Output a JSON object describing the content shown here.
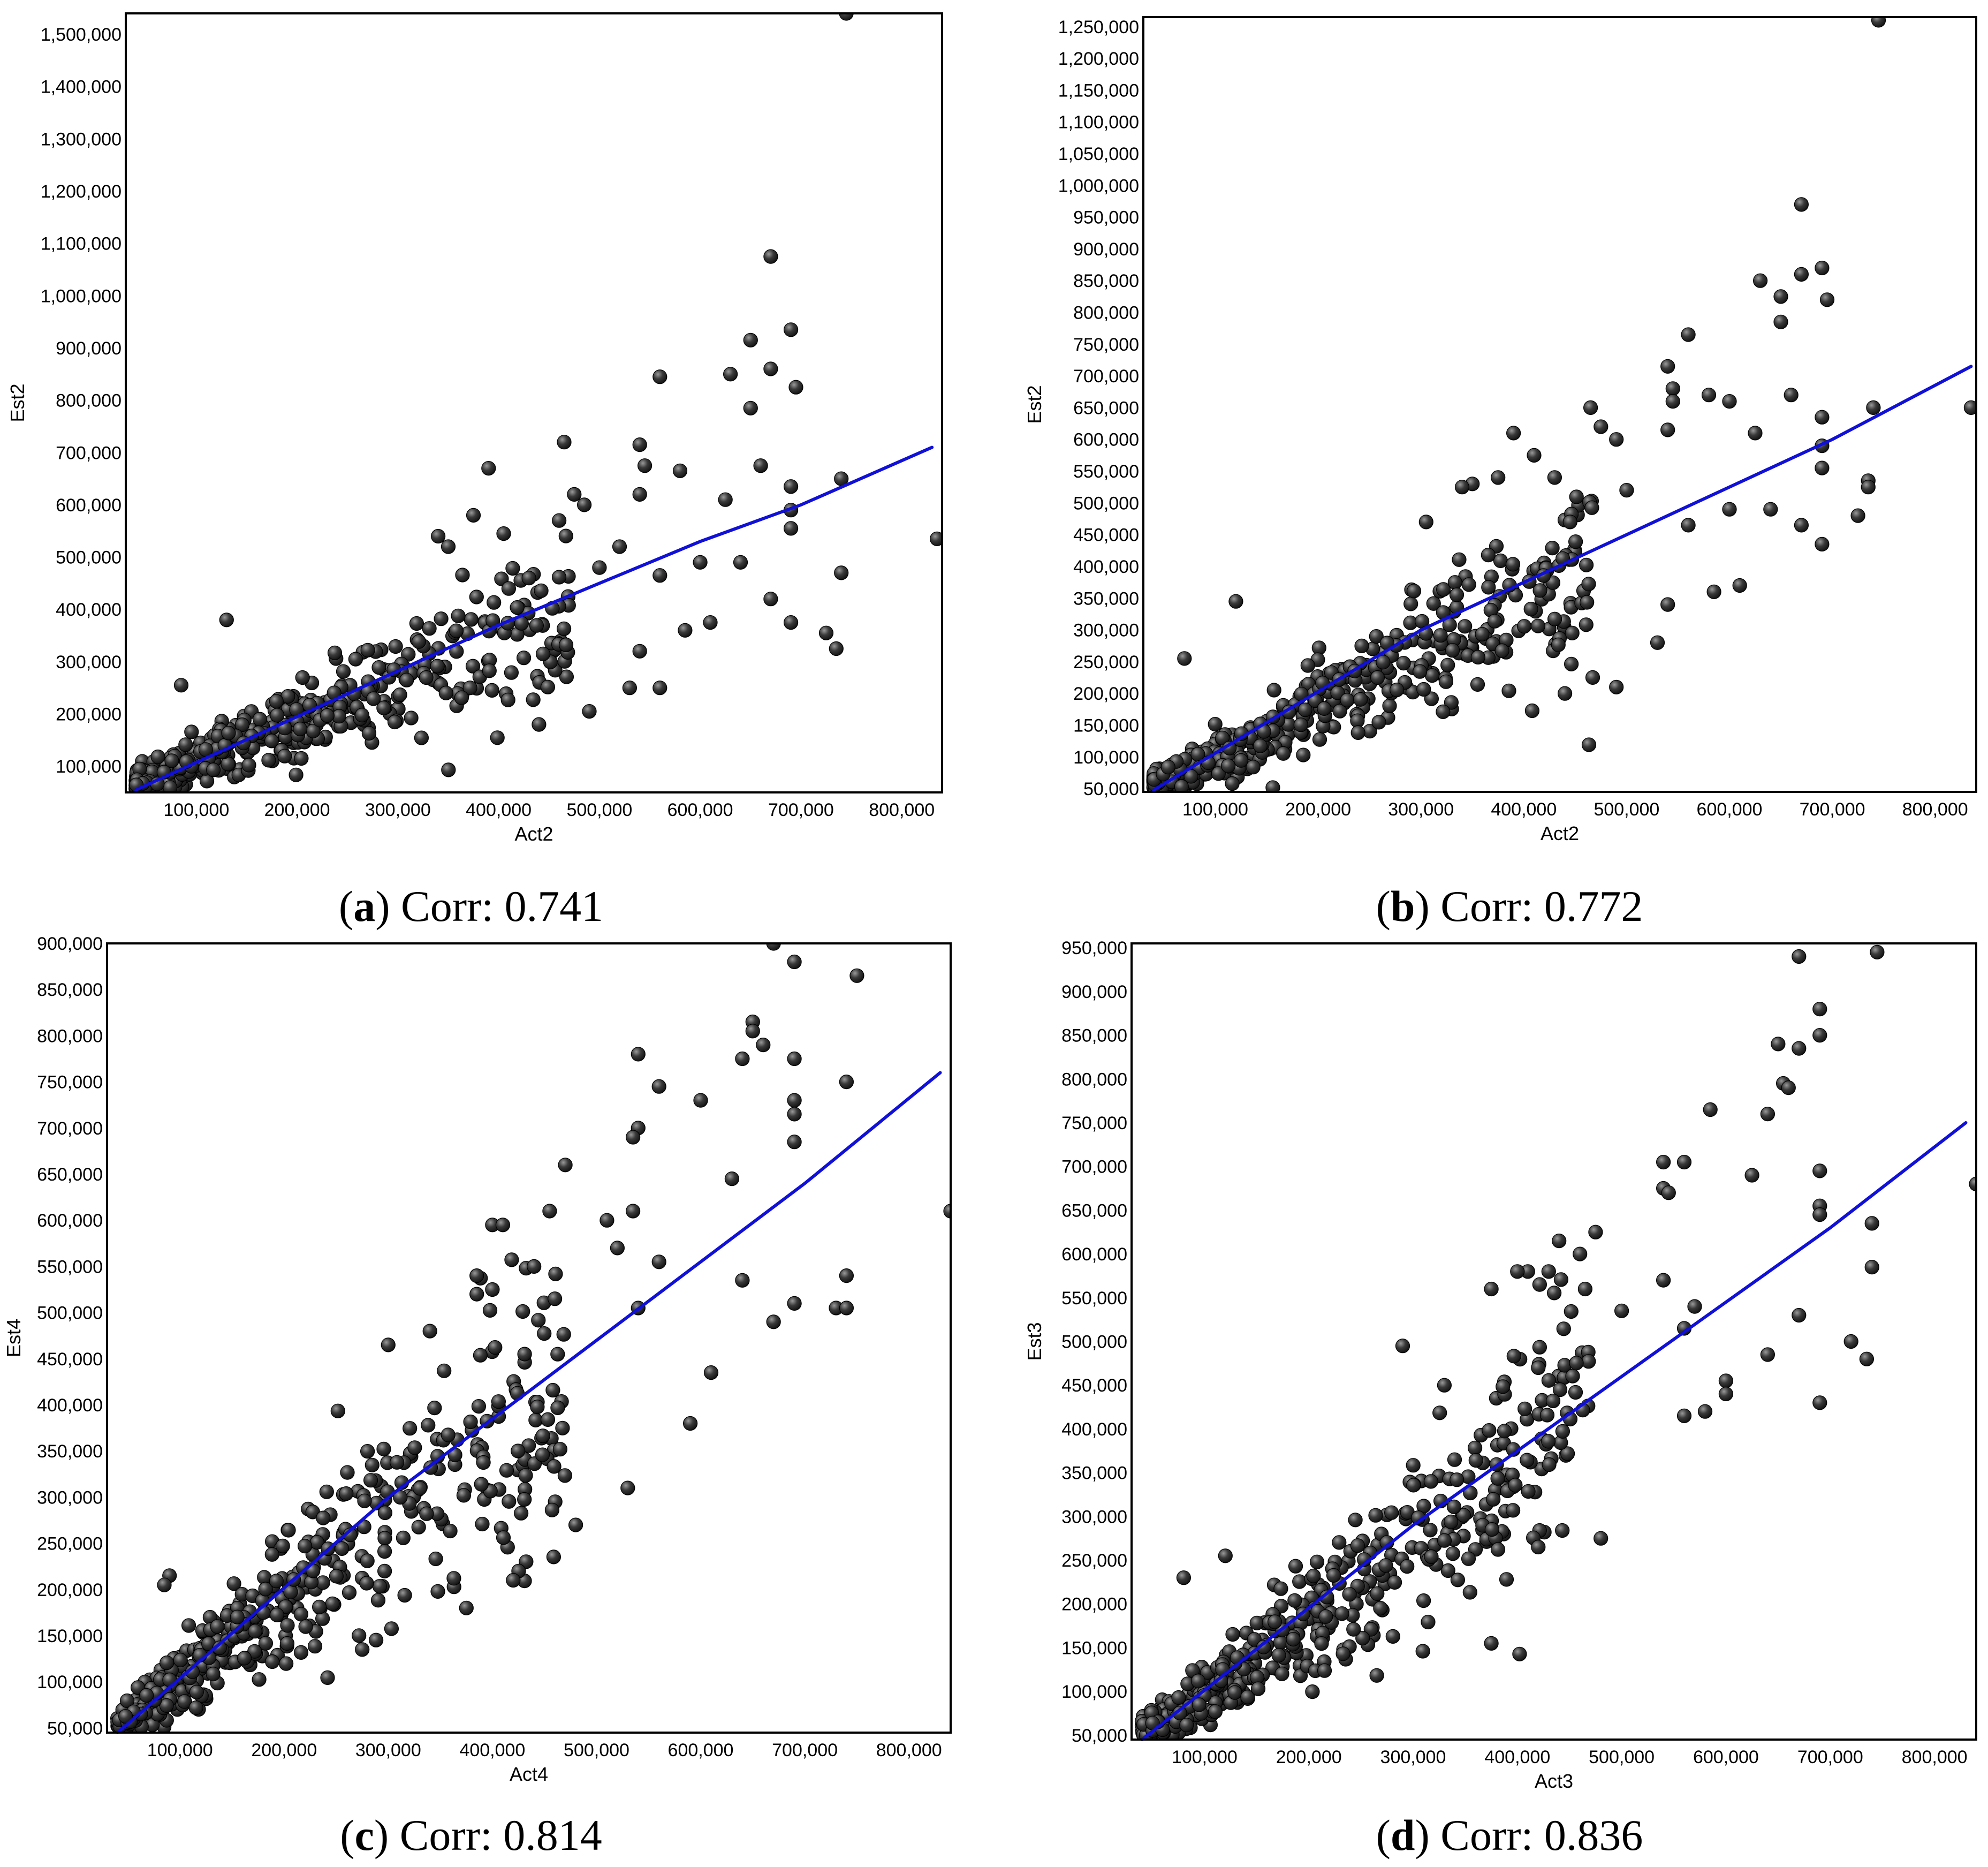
{
  "marker_color": "#2f2f2f",
  "fit_line_color": "#1010d8",
  "chart_data": [
    {
      "id": "a",
      "type": "scatter",
      "caption_letter": "a",
      "caption_text": "Corr: 0.741",
      "xlabel": "Act2",
      "ylabel": "Est2",
      "xlim": [
        30000,
        840000
      ],
      "ylim": [
        50000,
        1540000
      ],
      "xticks": [
        100000,
        200000,
        300000,
        400000,
        500000,
        600000,
        700000,
        800000
      ],
      "xtick_labels": [
        "100,000",
        "200,000",
        "300,000",
        "400,000",
        "500,000",
        "600,000",
        "700,000",
        "800,000"
      ],
      "yticks": [
        100000,
        200000,
        300000,
        400000,
        500000,
        600000,
        700000,
        800000,
        900000,
        1000000,
        1100000,
        1200000,
        1300000,
        1400000,
        1500000
      ],
      "ytick_labels": [
        "100,000",
        "200,000",
        "300,000",
        "400,000",
        "500,000",
        "600,000",
        "700,000",
        "800,000",
        "900,000",
        "1,000,000",
        "1,100,000",
        "1,200,000",
        "1,300,000",
        "1,400,000",
        "1,500,000"
      ],
      "fit_line": {
        "x": [
          40000,
          400000,
          500000,
          600000,
          700000,
          830000
        ],
        "y": [
          55000,
          370000,
          450000,
          530000,
          600000,
          710000
        ]
      },
      "band": {
        "slope": 0.78,
        "intercept": 30000,
        "spread": 0.22
      },
      "outliers": [
        [
          745000,
          1540000
        ],
        [
          670000,
          1075000
        ],
        [
          690000,
          935000
        ],
        [
          650000,
          915000
        ],
        [
          670000,
          860000
        ],
        [
          695000,
          825000
        ],
        [
          630000,
          850000
        ],
        [
          650000,
          785000
        ],
        [
          560000,
          845000
        ],
        [
          660000,
          675000
        ],
        [
          465000,
          720000
        ],
        [
          390000,
          670000
        ],
        [
          540000,
          715000
        ],
        [
          545000,
          675000
        ],
        [
          580000,
          665000
        ],
        [
          540000,
          620000
        ],
        [
          625000,
          610000
        ],
        [
          690000,
          635000
        ],
        [
          740000,
          650000
        ],
        [
          690000,
          590000
        ],
        [
          690000,
          555000
        ],
        [
          835000,
          535000
        ],
        [
          740000,
          470000
        ],
        [
          725000,
          355000
        ],
        [
          735000,
          325000
        ],
        [
          670000,
          420000
        ],
        [
          690000,
          375000
        ],
        [
          640000,
          490000
        ],
        [
          600000,
          490000
        ],
        [
          610000,
          375000
        ],
        [
          585000,
          360000
        ],
        [
          560000,
          465000
        ],
        [
          560000,
          250000
        ],
        [
          530000,
          250000
        ],
        [
          490000,
          205000
        ],
        [
          440000,
          180000
        ],
        [
          540000,
          320000
        ],
        [
          500000,
          480000
        ],
        [
          485000,
          600000
        ],
        [
          475000,
          620000
        ],
        [
          460000,
          570000
        ],
        [
          405000,
          545000
        ],
        [
          375000,
          580000
        ],
        [
          350000,
          520000
        ],
        [
          340000,
          540000
        ],
        [
          130000,
          380000
        ],
        [
          85000,
          255000
        ],
        [
          410000,
          440000
        ],
        [
          430000,
          460000
        ],
        [
          520000,
          520000
        ]
      ],
      "bulk_count": 520
    },
    {
      "id": "b",
      "type": "scatter",
      "caption_letter": "b",
      "caption_text": "Corr: 0.772",
      "xlabel": "Act2",
      "ylabel": "Est2",
      "xlim": [
        30000,
        840000
      ],
      "ylim": [
        45000,
        1265000
      ],
      "xticks": [
        100000,
        200000,
        300000,
        400000,
        500000,
        600000,
        700000,
        800000
      ],
      "xtick_labels": [
        "100,000",
        "200,000",
        "300,000",
        "400,000",
        "500,000",
        "600,000",
        "700,000",
        "800,000"
      ],
      "yticks": [
        50000,
        100000,
        150000,
        200000,
        250000,
        300000,
        350000,
        400000,
        450000,
        500000,
        550000,
        600000,
        650000,
        700000,
        750000,
        800000,
        850000,
        900000,
        950000,
        1000000,
        1050000,
        1100000,
        1150000,
        1200000,
        1250000
      ],
      "ytick_labels": [
        "50,000",
        "100,000",
        "150,000",
        "200,000",
        "250,000",
        "300,000",
        "350,000",
        "400,000",
        "450,000",
        "500,000",
        "550,000",
        "600,000",
        "650,000",
        "700,000",
        "750,000",
        "800,000",
        "850,000",
        "900,000",
        "950,000",
        "1,000,000",
        "1,050,000",
        "1,100,000",
        "1,150,000",
        "1,200,000",
        "1,250,000"
      ],
      "fit_line": {
        "x": [
          40000,
          300000,
          500000,
          700000,
          835000
        ],
        "y": [
          48000,
          300000,
          450000,
          600000,
          715000
        ]
      },
      "band": {
        "slope": 0.82,
        "intercept": 20000,
        "spread": 0.22
      },
      "outliers": [
        [
          745000,
          1260000
        ],
        [
          670000,
          970000
        ],
        [
          690000,
          870000
        ],
        [
          670000,
          860000
        ],
        [
          695000,
          820000
        ],
        [
          630000,
          850000
        ],
        [
          650000,
          825000
        ],
        [
          650000,
          785000
        ],
        [
          560000,
          765000
        ],
        [
          540000,
          715000
        ],
        [
          545000,
          680000
        ],
        [
          545000,
          660000
        ],
        [
          580000,
          670000
        ],
        [
          600000,
          660000
        ],
        [
          660000,
          670000
        ],
        [
          465000,
          650000
        ],
        [
          390000,
          610000
        ],
        [
          475000,
          620000
        ],
        [
          490000,
          600000
        ],
        [
          540000,
          615000
        ],
        [
          625000,
          610000
        ],
        [
          690000,
          635000
        ],
        [
          740000,
          650000
        ],
        [
          835000,
          650000
        ],
        [
          690000,
          590000
        ],
        [
          690000,
          555000
        ],
        [
          735000,
          535000
        ],
        [
          735000,
          525000
        ],
        [
          725000,
          480000
        ],
        [
          670000,
          465000
        ],
        [
          690000,
          435000
        ],
        [
          640000,
          490000
        ],
        [
          600000,
          490000
        ],
        [
          610000,
          370000
        ],
        [
          585000,
          360000
        ],
        [
          560000,
          465000
        ],
        [
          530000,
          280000
        ],
        [
          490000,
          210000
        ],
        [
          440000,
          200000
        ],
        [
          540000,
          340000
        ],
        [
          500000,
          520000
        ],
        [
          410000,
          575000
        ],
        [
          430000,
          540000
        ],
        [
          350000,
          530000
        ],
        [
          340000,
          525000
        ],
        [
          120000,
          345000
        ],
        [
          70000,
          255000
        ],
        [
          305000,
          470000
        ],
        [
          375000,
          540000
        ],
        [
          445000,
          470000
        ]
      ],
      "bulk_count": 520
    },
    {
      "id": "c",
      "type": "scatter",
      "caption_letter": "c",
      "caption_text": "Corr: 0.814",
      "xlabel": "Act4",
      "ylabel": "Est4",
      "xlim": [
        30000,
        840000
      ],
      "ylim": [
        45000,
        900000
      ],
      "xticks": [
        100000,
        200000,
        300000,
        400000,
        500000,
        600000,
        700000,
        800000
      ],
      "xtick_labels": [
        "100,000",
        "200,000",
        "300,000",
        "400,000",
        "500,000",
        "600,000",
        "700,000",
        "800,000"
      ],
      "yticks": [
        50000,
        100000,
        150000,
        200000,
        250000,
        300000,
        350000,
        400000,
        450000,
        500000,
        550000,
        600000,
        650000,
        700000,
        750000,
        800000,
        850000,
        900000
      ],
      "ytick_labels": [
        "50,000",
        "100,000",
        "150,000",
        "200,000",
        "250,000",
        "300,000",
        "350,000",
        "400,000",
        "450,000",
        "500,000",
        "550,000",
        "600,000",
        "650,000",
        "700,000",
        "750,000",
        "800,000",
        "850,000",
        "900,000"
      ],
      "fit_line": {
        "x": [
          40000,
          300000,
          500000,
          700000,
          830000
        ],
        "y": [
          45000,
          300000,
          470000,
          640000,
          760000
        ]
      },
      "band": {
        "slope": 0.88,
        "intercept": 12000,
        "spread": 0.22
      },
      "outliers": [
        [
          670000,
          900000
        ],
        [
          690000,
          880000
        ],
        [
          750000,
          865000
        ],
        [
          650000,
          815000
        ],
        [
          650000,
          805000
        ],
        [
          660000,
          790000
        ],
        [
          640000,
          775000
        ],
        [
          690000,
          775000
        ],
        [
          540000,
          780000
        ],
        [
          560000,
          745000
        ],
        [
          600000,
          730000
        ],
        [
          740000,
          750000
        ],
        [
          690000,
          730000
        ],
        [
          690000,
          715000
        ],
        [
          690000,
          685000
        ],
        [
          540000,
          700000
        ],
        [
          535000,
          690000
        ],
        [
          470000,
          660000
        ],
        [
          630000,
          645000
        ],
        [
          840000,
          610000
        ],
        [
          455000,
          610000
        ],
        [
          535000,
          610000
        ],
        [
          510000,
          600000
        ],
        [
          400000,
          595000
        ],
        [
          410000,
          595000
        ],
        [
          520000,
          570000
        ],
        [
          560000,
          555000
        ],
        [
          740000,
          540000
        ],
        [
          640000,
          535000
        ],
        [
          385000,
          540000
        ],
        [
          440000,
          550000
        ],
        [
          400000,
          525000
        ],
        [
          385000,
          520000
        ],
        [
          460000,
          515000
        ],
        [
          540000,
          505000
        ],
        [
          690000,
          510000
        ],
        [
          730000,
          505000
        ],
        [
          740000,
          505000
        ],
        [
          670000,
          490000
        ],
        [
          610000,
          435000
        ],
        [
          590000,
          380000
        ],
        [
          530000,
          310000
        ],
        [
          480000,
          270000
        ],
        [
          420000,
          210000
        ],
        [
          375000,
          180000
        ],
        [
          275000,
          135000
        ],
        [
          90000,
          215000
        ],
        [
          85000,
          205000
        ],
        [
          300000,
          465000
        ],
        [
          340000,
          480000
        ]
      ],
      "bulk_count": 520
    },
    {
      "id": "d",
      "type": "scatter",
      "caption_letter": "d",
      "caption_text": "Corr: 0.836",
      "xlabel": "Act3",
      "ylabel": "Est3",
      "xlim": [
        30000,
        840000
      ],
      "ylim": [
        45000,
        955000
      ],
      "xticks": [
        100000,
        200000,
        300000,
        400000,
        500000,
        600000,
        700000,
        800000
      ],
      "xtick_labels": [
        "100,000",
        "200,000",
        "300,000",
        "400,000",
        "500,000",
        "600,000",
        "700,000",
        "800,000"
      ],
      "yticks": [
        50000,
        100000,
        150000,
        200000,
        250000,
        300000,
        350000,
        400000,
        450000,
        500000,
        550000,
        600000,
        650000,
        700000,
        750000,
        800000,
        850000,
        900000,
        950000
      ],
      "ytick_labels": [
        "50,000",
        "100,000",
        "150,000",
        "200,000",
        "250,000",
        "300,000",
        "350,000",
        "400,000",
        "450,000",
        "500,000",
        "550,000",
        "600,000",
        "650,000",
        "700,000",
        "750,000",
        "800,000",
        "850,000",
        "900,000",
        "950,000"
      ],
      "fit_line": {
        "x": [
          40000,
          300000,
          500000,
          700000,
          830000
        ],
        "y": [
          45000,
          290000,
          460000,
          630000,
          750000
        ]
      },
      "band": {
        "slope": 0.86,
        "intercept": 12000,
        "spread": 0.22
      },
      "outliers": [
        [
          745000,
          945000
        ],
        [
          670000,
          940000
        ],
        [
          690000,
          880000
        ],
        [
          690000,
          850000
        ],
        [
          670000,
          835000
        ],
        [
          650000,
          840000
        ],
        [
          655000,
          795000
        ],
        [
          660000,
          790000
        ],
        [
          640000,
          760000
        ],
        [
          585000,
          765000
        ],
        [
          540000,
          705000
        ],
        [
          560000,
          705000
        ],
        [
          690000,
          695000
        ],
        [
          625000,
          690000
        ],
        [
          840000,
          680000
        ],
        [
          540000,
          675000
        ],
        [
          545000,
          670000
        ],
        [
          690000,
          655000
        ],
        [
          690000,
          645000
        ],
        [
          740000,
          635000
        ],
        [
          475000,
          625000
        ],
        [
          440000,
          615000
        ],
        [
          460000,
          600000
        ],
        [
          740000,
          585000
        ],
        [
          410000,
          580000
        ],
        [
          400000,
          580000
        ],
        [
          430000,
          580000
        ],
        [
          540000,
          570000
        ],
        [
          375000,
          560000
        ],
        [
          465000,
          560000
        ],
        [
          500000,
          535000
        ],
        [
          570000,
          540000
        ],
        [
          560000,
          515000
        ],
        [
          670000,
          530000
        ],
        [
          720000,
          500000
        ],
        [
          735000,
          480000
        ],
        [
          690000,
          430000
        ],
        [
          640000,
          485000
        ],
        [
          600000,
          455000
        ],
        [
          600000,
          440000
        ],
        [
          580000,
          420000
        ],
        [
          560000,
          415000
        ],
        [
          480000,
          275000
        ],
        [
          420000,
          265000
        ],
        [
          375000,
          155000
        ],
        [
          290000,
          495000
        ],
        [
          120000,
          255000
        ],
        [
          80000,
          230000
        ],
        [
          330000,
          450000
        ],
        [
          420000,
          470000
        ]
      ],
      "bulk_count": 520
    }
  ]
}
